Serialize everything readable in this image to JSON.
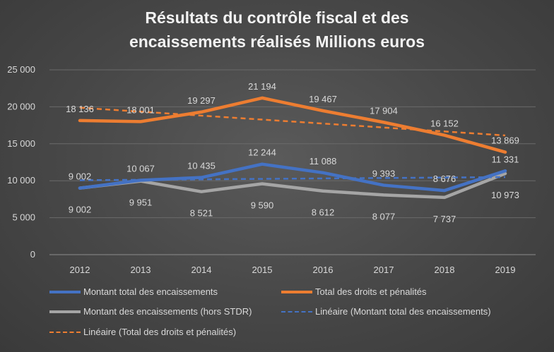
{
  "chart_data": {
    "type": "line",
    "title_lines": [
      "Résultats du contrôle fiscal et des",
      "encaissements réalisés Millions euros"
    ],
    "categories": [
      "2012",
      "2013",
      "2014",
      "2015",
      "2016",
      "2017",
      "2018",
      "2019"
    ],
    "ylim": [
      0,
      25000
    ],
    "yticks": [
      0,
      5000,
      10000,
      15000,
      20000,
      25000
    ],
    "ytick_labels": [
      "0",
      "5 000",
      "10 000",
      "15 000",
      "20 000",
      "25 000"
    ],
    "grid": true,
    "legend_position": "bottom",
    "series": [
      {
        "name": "Montant total des encaissements",
        "color": "#4472c4",
        "style": "solid",
        "values": [
          9002,
          10067,
          10435,
          12244,
          11088,
          9393,
          8676,
          11331
        ],
        "labels": [
          "9 002",
          "10 067",
          "10 435",
          "12 244",
          "11 088",
          "9 393",
          "8 676",
          "11 331"
        ],
        "label_side": "above"
      },
      {
        "name": "Total des droits et pénalités",
        "color": "#ed7d31",
        "style": "solid",
        "values": [
          18136,
          18001,
          19297,
          21194,
          19467,
          17904,
          16152,
          13869
        ],
        "labels": [
          "18 136",
          "18 001",
          "19 297",
          "21 194",
          "19 467",
          "17 904",
          "16 152",
          "13 869"
        ],
        "label_side": "above"
      },
      {
        "name": "Montant des encaissements (hors STDR)",
        "color": "#a5a5a5",
        "style": "solid",
        "values": [
          9002,
          9951,
          8521,
          9590,
          8612,
          8077,
          7737,
          10973
        ],
        "labels": [
          "9 002",
          "9 951",
          "8 521",
          "9 590",
          "8 612",
          "8 077",
          "7 737",
          "10 973"
        ],
        "label_side": "below"
      },
      {
        "name": "Linéaire (Montant total des encaissements)",
        "color": "#4472c4",
        "style": "dashed",
        "trendline_of": "Montant total des encaissements"
      },
      {
        "name": "Linéaire (Total des droits et pénalités)",
        "color": "#ed7d31",
        "style": "dashed",
        "trendline_of": "Total des droits et pénalités"
      }
    ]
  }
}
